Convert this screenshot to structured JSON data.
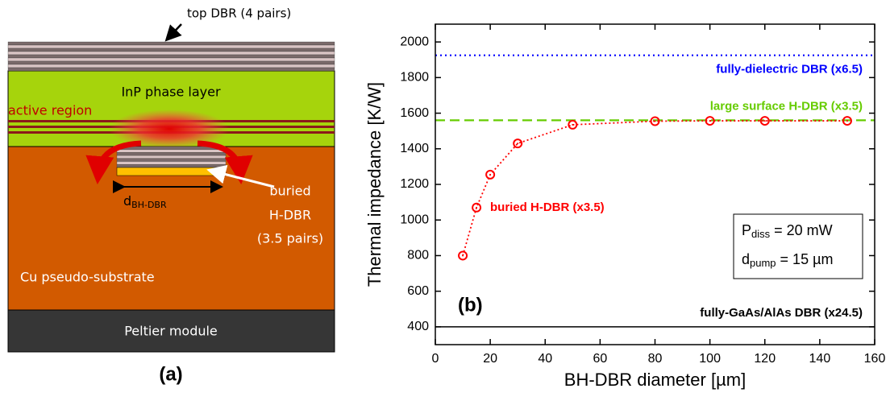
{
  "diagram": {
    "top_dbr": "top DBR (4 pairs)",
    "phase_layer": "InP phase layer",
    "active_region": "active region",
    "buried_dbr": [
      "buried",
      "H-DBR",
      "(3.5 pairs)"
    ],
    "diameter": {
      "symbol": "d",
      "subscript": "BH-DBR"
    },
    "substrate": "Cu pseudo-substrate",
    "peltier": "Peltier module",
    "panel": "(a)"
  },
  "chart_data": {
    "type": "scatter",
    "panel": "(b)",
    "x_label": "BH-DBR diameter [µm]",
    "y_label": "Thermal impedance [K/W]",
    "xlim": [
      0,
      160
    ],
    "xticks": [
      0,
      20,
      40,
      60,
      80,
      100,
      120,
      140,
      160
    ],
    "ylim": [
      300,
      2100
    ],
    "yticks": [
      400,
      600,
      800,
      1000,
      1200,
      1400,
      1600,
      1800,
      2000
    ],
    "series": [
      {
        "name": "buried H-DBR (x3.5)",
        "color": "#ff0000",
        "x": [
          10,
          15,
          20,
          30,
          50,
          80,
          100,
          120,
          150
        ],
        "values": [
          800,
          1070,
          1255,
          1430,
          1535,
          1555,
          1557,
          1557,
          1557
        ]
      }
    ],
    "reference_lines": [
      {
        "label": "fully-dielectric DBR (x6.5)",
        "value": 1925,
        "color": "#0000ff",
        "style": "dotted"
      },
      {
        "label": "large surface H-DBR (x3.5)",
        "value": 1560,
        "color": "#66cc00",
        "style": "dashed"
      },
      {
        "label": "fully-GaAs/AlAs DBR (x24.5)",
        "value": 400,
        "color": "#000000",
        "style": "solid"
      }
    ],
    "conditions": [
      {
        "symbol": "P",
        "subscript": "diss",
        "text": " = 20 mW"
      },
      {
        "symbol": "d",
        "subscript": "pump",
        "text": " = 15 µm"
      }
    ]
  }
}
